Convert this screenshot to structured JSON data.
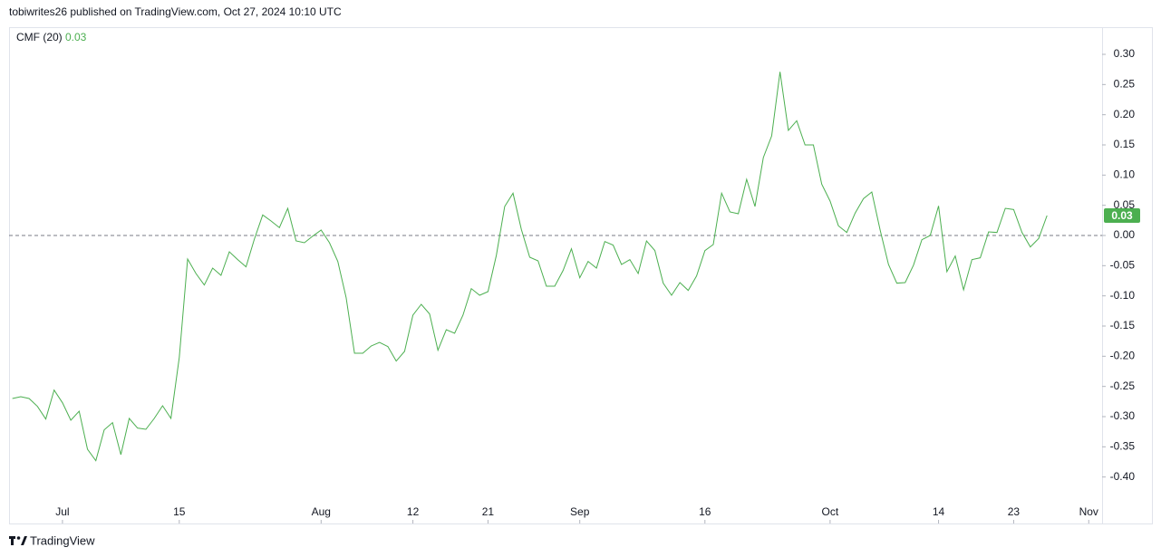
{
  "header": {
    "title": "tobiwrites26 published on TradingView.com, Oct 27, 2024 10:10 UTC"
  },
  "footer": {
    "brand": "TradingView"
  },
  "chart_data": {
    "type": "line",
    "series": [
      {
        "name": "CMF (20)",
        "color": "#4caf50",
        "last_label": "0.03",
        "values": [
          -0.27,
          -0.267,
          -0.27,
          -0.283,
          -0.304,
          -0.256,
          -0.277,
          -0.306,
          -0.291,
          -0.354,
          -0.373,
          -0.322,
          -0.31,
          -0.363,
          -0.303,
          -0.319,
          -0.321,
          -0.303,
          -0.282,
          -0.303,
          -0.202,
          -0.039,
          -0.063,
          -0.082,
          -0.054,
          -0.066,
          -0.027,
          -0.04,
          -0.052,
          -0.006,
          0.034,
          0.024,
          0.013,
          0.045,
          -0.009,
          -0.012,
          -0.001,
          0.009,
          -0.012,
          -0.043,
          -0.103,
          -0.195,
          -0.195,
          -0.183,
          -0.177,
          -0.184,
          -0.208,
          -0.192,
          -0.132,
          -0.114,
          -0.13,
          -0.19,
          -0.156,
          -0.162,
          -0.132,
          -0.088,
          -0.099,
          -0.093,
          -0.033,
          0.048,
          0.07,
          0.01,
          -0.036,
          -0.042,
          -0.084,
          -0.084,
          -0.058,
          -0.022,
          -0.07,
          -0.043,
          -0.054,
          -0.01,
          -0.016,
          -0.048,
          -0.04,
          -0.063,
          -0.009,
          -0.025,
          -0.079,
          -0.099,
          -0.078,
          -0.091,
          -0.067,
          -0.025,
          -0.015,
          0.07,
          0.039,
          0.036,
          0.093,
          0.048,
          0.129,
          0.165,
          0.271,
          0.174,
          0.19,
          0.15,
          0.15,
          0.085,
          0.057,
          0.016,
          0.005,
          0.037,
          0.061,
          0.072,
          0.009,
          -0.048,
          -0.079,
          -0.078,
          -0.049,
          -0.007,
          0.0,
          0.049,
          -0.06,
          -0.034,
          -0.09,
          -0.04,
          -0.037,
          0.006,
          0.005,
          0.045,
          0.043,
          0.005,
          -0.019,
          -0.005,
          0.033
        ]
      }
    ],
    "xlim": [
      -0.4,
      130.6
    ],
    "xticks": [
      {
        "value": 6,
        "label": "Jul"
      },
      {
        "value": 20,
        "label": "15"
      },
      {
        "value": 37,
        "label": "Aug"
      },
      {
        "value": 48,
        "label": "12"
      },
      {
        "value": 57,
        "label": "21"
      },
      {
        "value": 68,
        "label": "Sep"
      },
      {
        "value": 83,
        "label": "16"
      },
      {
        "value": 98,
        "label": "Oct"
      },
      {
        "value": 111,
        "label": "14"
      },
      {
        "value": 120,
        "label": "23"
      },
      {
        "value": 129,
        "label": "Nov"
      }
    ],
    "ylim": [
      -0.477,
      0.345
    ],
    "yticks": [
      {
        "value": 0.3,
        "label": "0.30"
      },
      {
        "value": 0.25,
        "label": "0.25"
      },
      {
        "value": 0.2,
        "label": "0.20"
      },
      {
        "value": 0.15,
        "label": "0.15"
      },
      {
        "value": 0.1,
        "label": "0.10"
      },
      {
        "value": 0.05,
        "label": "0.05"
      },
      {
        "value": 0,
        "label": "0.00"
      },
      {
        "value": -0.05,
        "label": "-0.05"
      },
      {
        "value": -0.1,
        "label": "-0.10"
      },
      {
        "value": -0.15,
        "label": "-0.15"
      },
      {
        "value": -0.2,
        "label": "-0.20"
      },
      {
        "value": -0.25,
        "label": "-0.25"
      },
      {
        "value": -0.3,
        "label": "-0.30"
      },
      {
        "value": -0.35,
        "label": "-0.35"
      },
      {
        "value": -0.4,
        "label": "-0.40"
      }
    ],
    "reference_line": 0
  }
}
